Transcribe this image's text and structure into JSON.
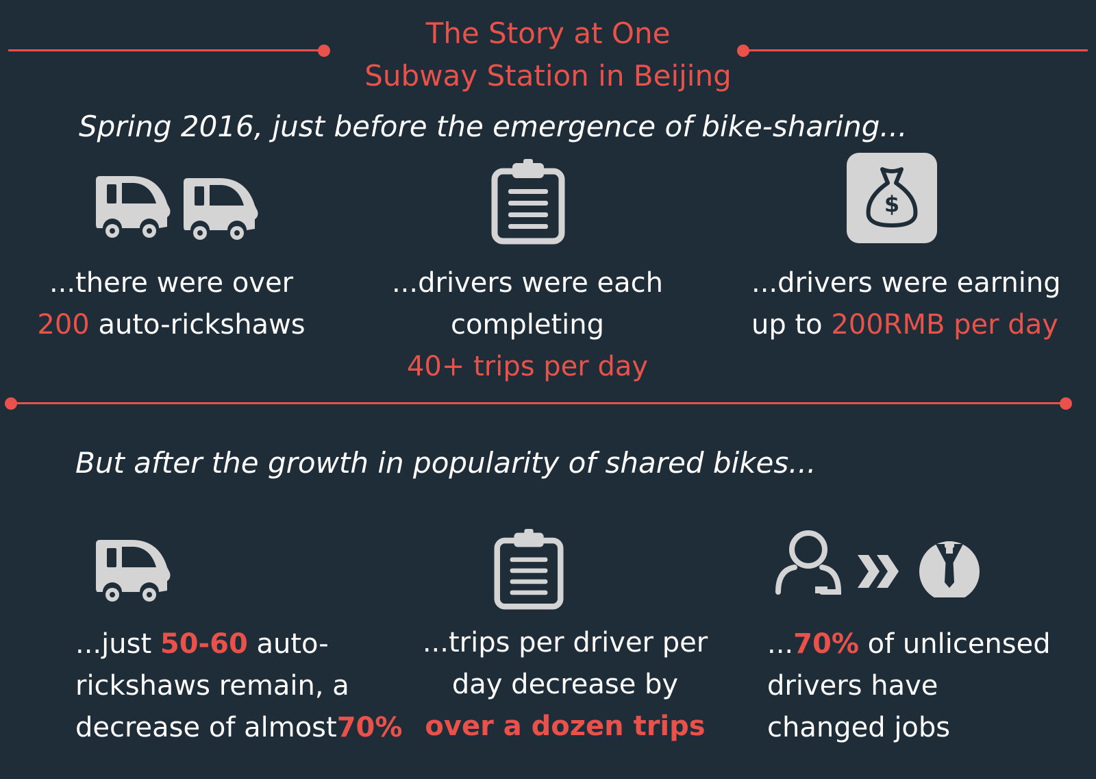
{
  "title": {
    "line1": "The Story at One",
    "line2": "Subway Station in Beijing"
  },
  "before": {
    "heading": "Spring 2016, just before the emergence of bike-sharing...",
    "items": [
      {
        "icon": "auto-rickshaw-icon",
        "pre": "...there were over",
        "hl": "200",
        "post": " auto-rickshaws"
      },
      {
        "icon": "clipboard-icon",
        "line1": "...drivers were each",
        "line2": "completing",
        "hl": "40+ trips per day"
      },
      {
        "icon": "money-bag-icon",
        "line1": "...drivers were earning",
        "pre": "up to ",
        "hl": "200RMB per day"
      }
    ]
  },
  "after": {
    "heading": "But after the growth in popularity of shared bikes...",
    "items": [
      {
        "icon": "auto-rickshaw-icon",
        "pre": "...just ",
        "hl": "50-60",
        "mid": " auto-",
        "line2": "rickshaws remain, a",
        "line3": "decrease of almost",
        "hl2": "70%"
      },
      {
        "icon": "clipboard-icon",
        "line1": "...trips per driver per",
        "line2": "day decrease by",
        "hl": "over a dozen trips"
      },
      {
        "icon": "job-change-icon",
        "pre": "...",
        "hl": "70%",
        "post": " of unlicensed",
        "line2": "drivers have",
        "line3": "changed jobs"
      }
    ]
  },
  "colors": {
    "background": "#1f2d38",
    "accent": "#e8524a",
    "icon": "#d4d4d4",
    "text": "#ffffff"
  }
}
